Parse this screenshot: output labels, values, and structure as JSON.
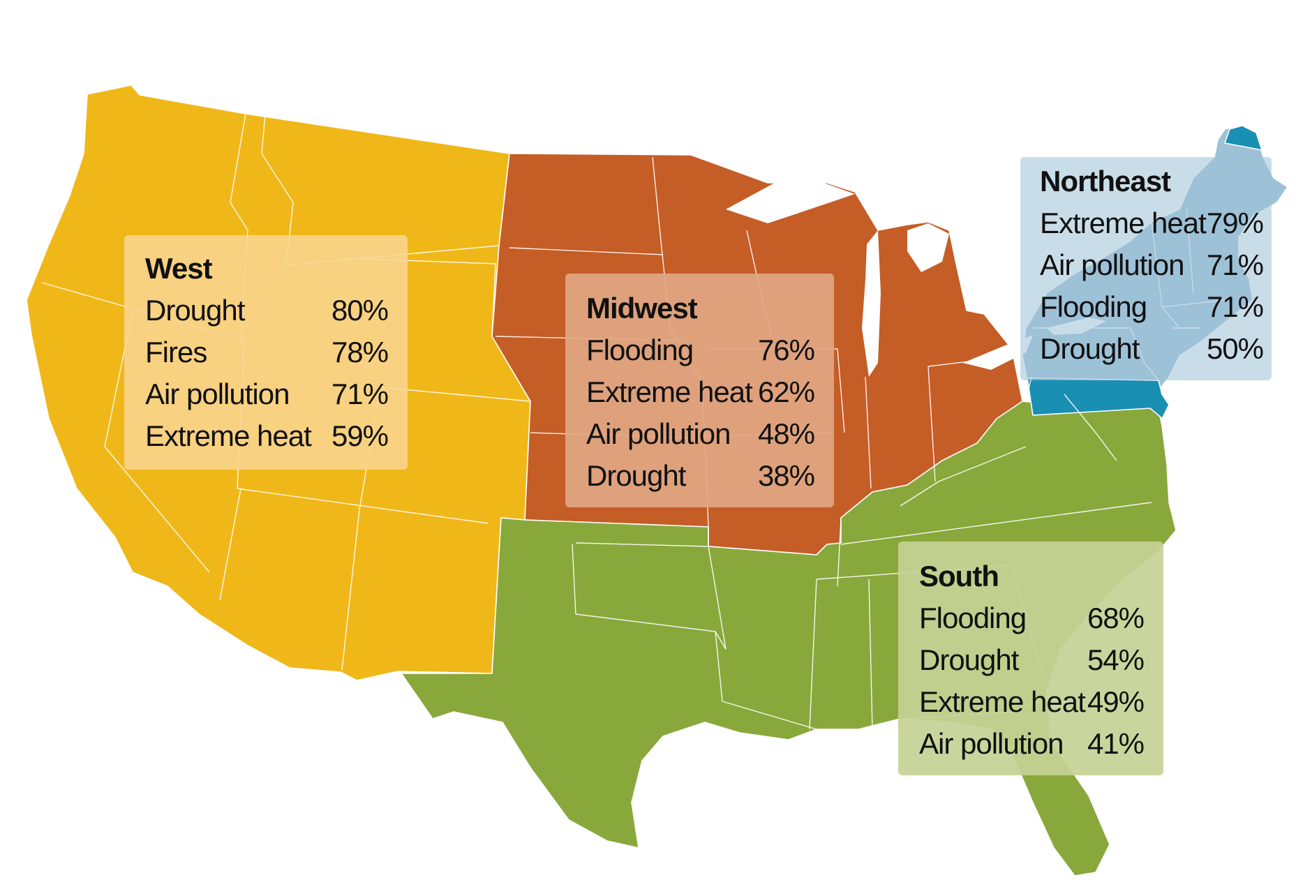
{
  "colors": {
    "west": "#f0b719",
    "midwest": "#c55d27",
    "south": "#89a83c",
    "northeast": "#9dc1d7",
    "northeast_dark": "#1a8fb4",
    "west_panel": "#f8d590",
    "midwest_panel": "#e0a783",
    "south_panel": "#c5d195",
    "northeast_panel": "#9dc1d7"
  },
  "regions": {
    "west": {
      "name": "West",
      "risks": [
        {
          "label": "Drought",
          "value": "80%"
        },
        {
          "label": "Fires",
          "value": "78%"
        },
        {
          "label": "Air pollution",
          "value": "71%"
        },
        {
          "label": "Extreme heat",
          "value": "59%"
        }
      ]
    },
    "midwest": {
      "name": "Midwest",
      "risks": [
        {
          "label": "Flooding",
          "value": "76%"
        },
        {
          "label": "Extreme heat",
          "value": "62%"
        },
        {
          "label": "Air pollution",
          "value": "48%"
        },
        {
          "label": "Drought",
          "value": "38%"
        }
      ]
    },
    "northeast": {
      "name": "Northeast",
      "risks": [
        {
          "label": "Extreme heat",
          "value": "79%"
        },
        {
          "label": "Air pollution",
          "value": "71%"
        },
        {
          "label": "Flooding",
          "value": "71%"
        },
        {
          "label": "Drought",
          "value": "50%"
        }
      ]
    },
    "south": {
      "name": "South",
      "risks": [
        {
          "label": "Flooding",
          "value": "68%"
        },
        {
          "label": "Drought",
          "value": "54%"
        },
        {
          "label": "Extreme heat",
          "value": "49%"
        },
        {
          "label": "Air pollution",
          "value": "41%"
        }
      ]
    }
  }
}
